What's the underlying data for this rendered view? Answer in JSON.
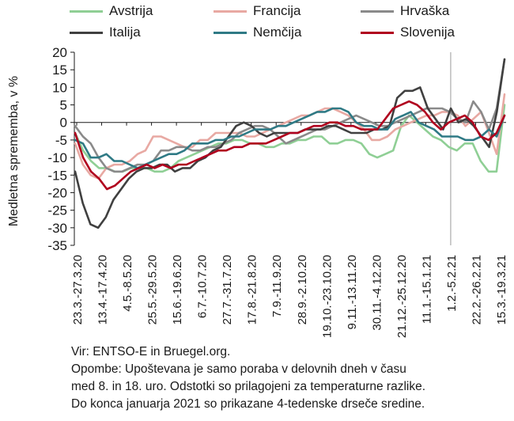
{
  "chart_data": {
    "type": "line",
    "ylabel": "Medletna sprememba, v %",
    "ylim": [
      -35,
      20
    ],
    "yticks": [
      20,
      15,
      10,
      5,
      0,
      -5,
      -10,
      -15,
      -20,
      -25,
      -30,
      -35
    ],
    "grid": false,
    "legend_position": "top",
    "xtick_labels": [
      "23.3.-27.3.20",
      "13.4.-17.4.20",
      "4.5.-8.5.20",
      "25.5.-29.5.20",
      "15.6.-19.6.20",
      "6.7.-10.7.20",
      "27.7.-31.7.20",
      "17.8.-21.8.20",
      "7.9.-11.9.20",
      "28.9.-2.10.20",
      "19.10.-23.10.20",
      "9.11.-13.11.20",
      "30.11.-4.12.20",
      "21.12.-25.12.20",
      "11.1.-15.1.21",
      "1.2.-5.2.21",
      "22.2.-26.2.21",
      "15.3.-19.3.21"
    ],
    "series": [
      {
        "name": "Avstrija",
        "color": "#8fcf95",
        "width": 2.6,
        "values": [
          -3,
          -8,
          -11,
          -13,
          -13,
          -14,
          -14,
          -13,
          -13,
          -13,
          -14,
          -14,
          -13,
          -11,
          -10,
          -9,
          -8,
          -7,
          -6,
          -6,
          -5,
          -5,
          -6,
          -6,
          -7,
          -7,
          -6,
          -6,
          -5,
          -5,
          -4,
          -4,
          -6,
          -6,
          -5,
          -5,
          -6,
          -9,
          -10,
          -9,
          -8,
          -1,
          2,
          0,
          -2,
          -4,
          -5,
          -7,
          -8,
          -6,
          -6,
          -11,
          -14,
          -14,
          5
        ]
      },
      {
        "name": "Francija",
        "color": "#e8a9a3",
        "width": 2.6,
        "values": [
          -6,
          -12,
          -15,
          -16,
          -13,
          -12,
          -12,
          -11,
          -9,
          -8,
          -4,
          -4,
          -5,
          -6,
          -7,
          -7,
          -5,
          -5,
          -3,
          -3,
          -3,
          -3,
          -4,
          -4,
          -3,
          -2,
          -1,
          0,
          1,
          2,
          2,
          3,
          4,
          4,
          3,
          2,
          0,
          -2,
          -5,
          -5,
          -4,
          -2,
          -1,
          0,
          1,
          2,
          2,
          3,
          3,
          2,
          -1,
          1,
          3,
          -3,
          -9,
          8
        ]
      },
      {
        "name": "Hrvaška",
        "color": "#8a8a8a",
        "width": 2.6,
        "values": [
          -1,
          -4,
          -6,
          -10,
          -13,
          -14,
          -14,
          -13,
          -12,
          -12,
          -11,
          -8,
          -8,
          -7,
          -7,
          -8,
          -8,
          -7,
          -7,
          -6,
          -5,
          -3,
          -2,
          -1,
          -1,
          -2,
          -4,
          -6,
          -5,
          -4,
          -3,
          -2,
          -2,
          -1,
          0,
          1,
          2,
          1,
          0,
          -1,
          -1,
          0,
          1,
          2,
          3,
          4,
          4,
          4,
          3,
          1,
          0,
          6,
          3,
          -2,
          4,
          18
        ]
      },
      {
        "name": "Italija",
        "color": "#404040",
        "width": 2.6,
        "values": [
          -14,
          -23,
          -29,
          -30,
          -27,
          -22,
          -19,
          -16,
          -14,
          -13,
          -13,
          -12,
          -12,
          -14,
          -13,
          -13,
          -11,
          -10,
          -8,
          -7,
          -4,
          -1,
          0,
          -1,
          -3,
          -4,
          -3,
          -3,
          -3,
          -3,
          -2,
          -2,
          -2,
          -1,
          -1,
          -2,
          -3,
          -3,
          -3,
          -2,
          -2,
          -1,
          7,
          9,
          9,
          10,
          4,
          1,
          -2,
          4,
          0,
          1,
          -1,
          -4,
          -7,
          3,
          18
        ]
      },
      {
        "name": "Nemčija",
        "color": "#2f7a85",
        "width": 2.6,
        "values": [
          -5,
          -6,
          -10,
          -10,
          -9,
          -11,
          -11,
          -12,
          -13,
          -12,
          -11,
          -10,
          -9,
          -9,
          -8,
          -6,
          -6,
          -6,
          -5,
          -5,
          -4,
          -4,
          -3,
          -2,
          -2,
          -2,
          -1,
          -1,
          0,
          1,
          2,
          3,
          3,
          4,
          4,
          3,
          0,
          -1,
          -1,
          -2,
          -2,
          1,
          2,
          3,
          0,
          -1,
          -2,
          -4,
          -4,
          -4,
          -5,
          -5,
          -4,
          -2,
          -4,
          2
        ]
      },
      {
        "name": "Slovenija",
        "color": "#b0001e",
        "width": 2.6,
        "values": [
          -3,
          -10,
          -14,
          -16,
          -19,
          -18,
          -16,
          -14,
          -13,
          -12,
          -13,
          -12,
          -13,
          -12,
          -12,
          -11,
          -10,
          -9,
          -8,
          -8,
          -7,
          -7,
          -6,
          -6,
          -6,
          -5,
          -4,
          -3,
          -3,
          -2,
          -1,
          -1,
          0,
          0,
          -1,
          -1,
          -2,
          -2,
          -2,
          1,
          4,
          5,
          6,
          5,
          3,
          0,
          -2,
          0,
          1,
          2,
          0,
          -4,
          -5,
          -3,
          2
        ]
      }
    ]
  },
  "legend": [
    {
      "label": "Avstrija",
      "color": "#8fcf95"
    },
    {
      "label": "Francija",
      "color": "#e8a9a3"
    },
    {
      "label": "Hrvaška",
      "color": "#8a8a8a"
    },
    {
      "label": "Italija",
      "color": "#404040"
    },
    {
      "label": "Nemčija",
      "color": "#2f7a85"
    },
    {
      "label": "Slovenija",
      "color": "#b0001e"
    }
  ],
  "footnote": {
    "source": "Vir: ENTSO-E in Bruegel.org.",
    "note1": "Opombe: Upoštevana je samo poraba v delovnih dneh v času",
    "note2": "med 8. in 18. uro. Odstotki so prilagojeni za temperaturne razlike.",
    "note3": "Do konca januarja 2021 so prikazane 4-tedenske drseče sredine."
  }
}
